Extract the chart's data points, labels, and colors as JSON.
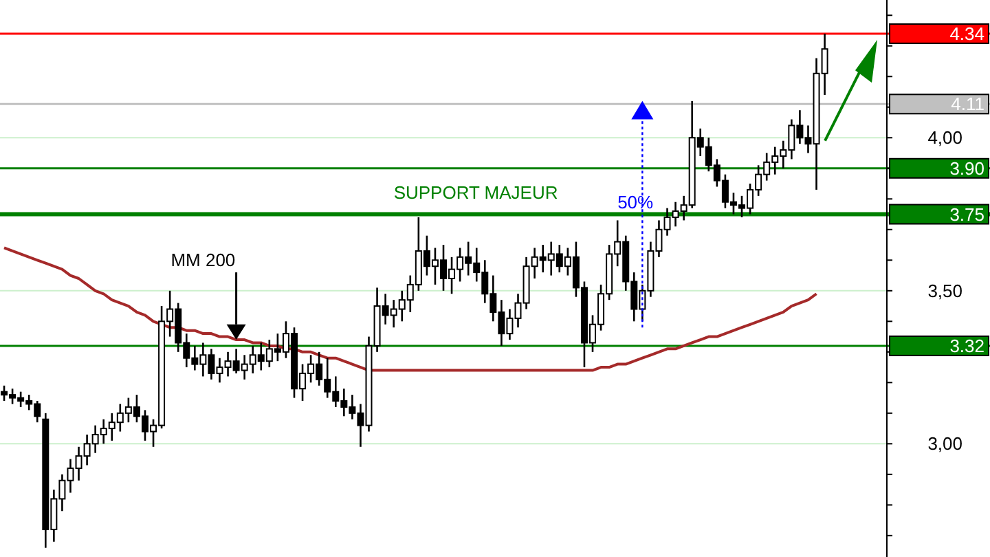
{
  "chart_data": {
    "type": "candlestick",
    "categories": [
      null,
      null,
      null,
      null,
      null,
      null,
      null,
      null,
      null,
      null,
      null,
      null,
      null,
      null,
      null,
      null,
      null,
      null,
      null,
      null,
      null,
      null,
      null,
      null,
      null,
      null,
      null,
      null,
      null,
      null,
      null,
      null,
      null,
      null,
      null,
      null,
      null,
      null,
      null,
      null,
      null,
      null,
      null,
      null,
      null,
      null,
      null,
      null,
      null,
      null,
      null,
      null,
      null,
      null,
      null,
      null,
      null,
      null,
      null,
      null,
      null,
      null,
      null,
      null,
      null,
      null,
      null,
      null,
      null,
      null,
      null,
      null,
      null,
      null,
      null,
      null,
      null,
      null,
      null,
      null,
      null,
      null,
      null,
      null,
      null,
      null,
      null,
      null,
      null,
      null,
      null,
      null,
      null,
      null,
      null,
      null,
      null,
      null,
      null,
      null,
      null,
      null,
      null,
      null,
      null,
      null,
      null
    ],
    "ohlc": [
      [
        3.17,
        3.19,
        3.14,
        3.16
      ],
      [
        3.16,
        3.18,
        3.13,
        3.15
      ],
      [
        3.15,
        3.17,
        3.12,
        3.14
      ],
      [
        3.14,
        3.16,
        3.11,
        3.13
      ],
      [
        3.13,
        3.14,
        3.07,
        3.09
      ],
      [
        3.08,
        3.1,
        2.66,
        2.72
      ],
      [
        2.72,
        2.85,
        2.68,
        2.82
      ],
      [
        2.82,
        2.9,
        2.78,
        2.88
      ],
      [
        2.88,
        2.95,
        2.84,
        2.92
      ],
      [
        2.92,
        2.99,
        2.88,
        2.96
      ],
      [
        2.96,
        3.03,
        2.93,
        3.0
      ],
      [
        3.0,
        3.06,
        2.97,
        3.03
      ],
      [
        3.03,
        3.08,
        3.0,
        3.05
      ],
      [
        3.05,
        3.1,
        3.01,
        3.07
      ],
      [
        3.07,
        3.13,
        3.04,
        3.1
      ],
      [
        3.1,
        3.15,
        3.07,
        3.12
      ],
      [
        3.12,
        3.16,
        3.07,
        3.09
      ],
      [
        3.09,
        3.11,
        3.01,
        3.04
      ],
      [
        3.04,
        3.08,
        2.99,
        3.06
      ],
      [
        3.06,
        3.45,
        3.05,
        3.4
      ],
      [
        3.4,
        3.5,
        3.35,
        3.44
      ],
      [
        3.44,
        3.46,
        3.3,
        3.33
      ],
      [
        3.33,
        3.36,
        3.25,
        3.28
      ],
      [
        3.28,
        3.32,
        3.24,
        3.26
      ],
      [
        3.26,
        3.33,
        3.22,
        3.29
      ],
      [
        3.29,
        3.31,
        3.21,
        3.23
      ],
      [
        3.23,
        3.28,
        3.2,
        3.25
      ],
      [
        3.25,
        3.3,
        3.22,
        3.27
      ],
      [
        3.27,
        3.31,
        3.23,
        3.24
      ],
      [
        3.24,
        3.29,
        3.21,
        3.26
      ],
      [
        3.26,
        3.32,
        3.23,
        3.29
      ],
      [
        3.29,
        3.33,
        3.24,
        3.27
      ],
      [
        3.27,
        3.34,
        3.25,
        3.31
      ],
      [
        3.31,
        3.36,
        3.27,
        3.3
      ],
      [
        3.3,
        3.4,
        3.28,
        3.36
      ],
      [
        3.36,
        3.38,
        3.15,
        3.18
      ],
      [
        3.18,
        3.26,
        3.14,
        3.23
      ],
      [
        3.23,
        3.29,
        3.2,
        3.26
      ],
      [
        3.26,
        3.3,
        3.19,
        3.21
      ],
      [
        3.21,
        3.28,
        3.15,
        3.17
      ],
      [
        3.17,
        3.22,
        3.12,
        3.14
      ],
      [
        3.14,
        3.18,
        3.09,
        3.12
      ],
      [
        3.12,
        3.16,
        3.08,
        3.1
      ],
      [
        3.1,
        3.13,
        2.99,
        3.06
      ],
      [
        3.06,
        3.35,
        3.04,
        3.32
      ],
      [
        3.32,
        3.51,
        3.3,
        3.45
      ],
      [
        3.45,
        3.49,
        3.39,
        3.42
      ],
      [
        3.42,
        3.47,
        3.38,
        3.44
      ],
      [
        3.44,
        3.5,
        3.4,
        3.47
      ],
      [
        3.47,
        3.55,
        3.43,
        3.52
      ],
      [
        3.52,
        3.74,
        3.5,
        3.63
      ],
      [
        3.63,
        3.68,
        3.55,
        3.58
      ],
      [
        3.58,
        3.64,
        3.52,
        3.6
      ],
      [
        3.6,
        3.65,
        3.5,
        3.54
      ],
      [
        3.54,
        3.61,
        3.49,
        3.57
      ],
      [
        3.57,
        3.64,
        3.53,
        3.61
      ],
      [
        3.61,
        3.66,
        3.55,
        3.59
      ],
      [
        3.59,
        3.64,
        3.53,
        3.56
      ],
      [
        3.56,
        3.6,
        3.46,
        3.49
      ],
      [
        3.49,
        3.55,
        3.4,
        3.43
      ],
      [
        3.43,
        3.47,
        3.32,
        3.36
      ],
      [
        3.36,
        3.44,
        3.34,
        3.41
      ],
      [
        3.41,
        3.49,
        3.38,
        3.46
      ],
      [
        3.46,
        3.61,
        3.44,
        3.58
      ],
      [
        3.58,
        3.64,
        3.54,
        3.61
      ],
      [
        3.61,
        3.65,
        3.56,
        3.6
      ],
      [
        3.6,
        3.66,
        3.55,
        3.62
      ],
      [
        3.62,
        3.65,
        3.56,
        3.58
      ],
      [
        3.58,
        3.64,
        3.55,
        3.61
      ],
      [
        3.61,
        3.66,
        3.48,
        3.51
      ],
      [
        3.51,
        3.53,
        3.25,
        3.33
      ],
      [
        3.33,
        3.42,
        3.3,
        3.39
      ],
      [
        3.39,
        3.52,
        3.37,
        3.49
      ],
      [
        3.49,
        3.65,
        3.47,
        3.62
      ],
      [
        3.62,
        3.73,
        3.58,
        3.66
      ],
      [
        3.66,
        3.68,
        3.5,
        3.53
      ],
      [
        3.53,
        3.56,
        3.4,
        3.44
      ],
      [
        3.44,
        3.52,
        3.4,
        3.5
      ],
      [
        3.5,
        3.66,
        3.48,
        3.63
      ],
      [
        3.63,
        3.73,
        3.61,
        3.7
      ],
      [
        3.7,
        3.77,
        3.68,
        3.74
      ],
      [
        3.74,
        3.79,
        3.71,
        3.76
      ],
      [
        3.76,
        3.81,
        3.73,
        3.78
      ],
      [
        3.78,
        4.12,
        3.77,
        4.0
      ],
      [
        4.0,
        4.03,
        3.94,
        3.97
      ],
      [
        3.97,
        4.0,
        3.89,
        3.91
      ],
      [
        3.91,
        3.93,
        3.84,
        3.86
      ],
      [
        3.86,
        3.88,
        3.77,
        3.79
      ],
      [
        3.79,
        3.82,
        3.75,
        3.78
      ],
      [
        3.78,
        3.81,
        3.74,
        3.77
      ],
      [
        3.77,
        3.85,
        3.75,
        3.83
      ],
      [
        3.83,
        3.91,
        3.81,
        3.88
      ],
      [
        3.88,
        3.95,
        3.86,
        3.92
      ],
      [
        3.92,
        3.97,
        3.88,
        3.94
      ],
      [
        3.94,
        3.99,
        3.9,
        3.96
      ],
      [
        3.96,
        4.06,
        3.93,
        4.04
      ],
      [
        4.04,
        4.09,
        3.98,
        4.0
      ],
      [
        4.0,
        4.04,
        3.95,
        3.98
      ],
      [
        3.98,
        4.26,
        3.83,
        4.21
      ],
      [
        4.21,
        4.34,
        4.14,
        4.29
      ],
      null,
      null,
      null,
      null,
      null,
      null,
      null
    ],
    "series": [
      {
        "type": "line",
        "color": "#a52a2a",
        "values": [
          3.64,
          3.63,
          3.62,
          3.61,
          3.6,
          3.59,
          3.58,
          3.57,
          3.55,
          3.54,
          3.52,
          3.5,
          3.49,
          3.47,
          3.46,
          3.45,
          3.43,
          3.42,
          3.4,
          3.39,
          3.38,
          3.38,
          3.37,
          3.37,
          3.36,
          3.36,
          3.35,
          3.35,
          3.34,
          3.34,
          3.33,
          3.33,
          3.32,
          3.32,
          3.31,
          3.31,
          3.3,
          3.3,
          3.29,
          3.28,
          3.28,
          3.27,
          3.26,
          3.25,
          3.24,
          3.24,
          3.24,
          3.24,
          3.24,
          3.24,
          3.24,
          3.24,
          3.24,
          3.24,
          3.24,
          3.24,
          3.24,
          3.24,
          3.24,
          3.24,
          3.24,
          3.24,
          3.24,
          3.24,
          3.24,
          3.24,
          3.24,
          3.24,
          3.24,
          3.24,
          3.24,
          3.24,
          3.25,
          3.25,
          3.26,
          3.26,
          3.27,
          3.28,
          3.29,
          3.3,
          3.31,
          3.31,
          3.32,
          3.33,
          3.34,
          3.35,
          3.35,
          3.36,
          3.37,
          3.38,
          3.39,
          3.4,
          3.41,
          3.42,
          3.43,
          3.45,
          3.46,
          3.47,
          3.49,
          null,
          null,
          null,
          null,
          null,
          null,
          null,
          null
        ]
      }
    ],
    "ylim": [
      2.63,
      4.45
    ],
    "yticks": [
      {
        "value": 2.7,
        "label": null
      },
      {
        "value": 2.8,
        "label": null
      },
      {
        "value": 2.9,
        "label": null
      },
      {
        "value": 3,
        "label": "3,00"
      },
      {
        "value": 3.1,
        "label": null
      },
      {
        "value": 3.2,
        "label": null
      },
      {
        "value": 3.3,
        "label": null
      },
      {
        "value": 3.4,
        "label": null
      },
      {
        "value": 3.5,
        "label": "3,50"
      },
      {
        "value": 3.6,
        "label": null
      },
      {
        "value": 3.7,
        "label": null
      },
      {
        "value": 3.8,
        "label": null
      },
      {
        "value": 3.9,
        "label": null
      },
      {
        "value": 4,
        "label": "4,00"
      },
      {
        "value": 4.1,
        "label": null
      },
      {
        "value": 4.2,
        "label": null
      },
      {
        "value": 4.3,
        "label": null
      },
      {
        "value": 4.4,
        "label": null
      }
    ],
    "grid": "y",
    "ref_lines": [
      {
        "axis": "y",
        "value": 4.34,
        "label": "4.34",
        "color": "#ff0000"
      },
      {
        "axis": "y",
        "value": 4.11,
        "label": "4.11",
        "color": "#c0c0c0"
      },
      {
        "axis": "y",
        "value": 3.9,
        "label": "3.90",
        "color": "#008000"
      },
      {
        "axis": "y",
        "value": 3.75,
        "label": "3.75",
        "color": "#008000"
      },
      {
        "axis": "y",
        "value": 3.32,
        "label": "3.32",
        "color": "#008000"
      }
    ],
    "annotations": [
      "MM 200",
      "SUPPORT MAJEUR",
      "50%"
    ]
  }
}
